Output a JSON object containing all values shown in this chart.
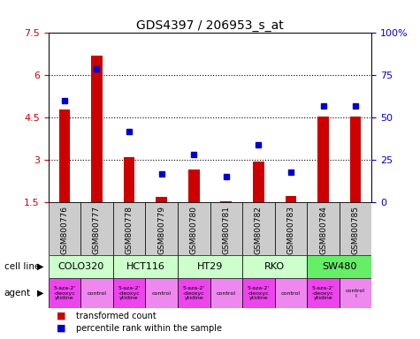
{
  "title": "GDS4397 / 206953_s_at",
  "samples": [
    "GSM800776",
    "GSM800777",
    "GSM800778",
    "GSM800779",
    "GSM800780",
    "GSM800781",
    "GSM800782",
    "GSM800783",
    "GSM800784",
    "GSM800785"
  ],
  "transformed_counts": [
    4.8,
    6.7,
    3.1,
    1.7,
    2.65,
    1.55,
    2.95,
    1.72,
    4.55,
    4.55
  ],
  "percentile_ranks": [
    60,
    79,
    42,
    17,
    28,
    15,
    34,
    18,
    57,
    57
  ],
  "ylim_left": [
    1.5,
    7.5
  ],
  "ylim_right": [
    0,
    100
  ],
  "yticks_left": [
    1.5,
    3.0,
    4.5,
    6.0,
    7.5
  ],
  "yticks_right": [
    0,
    25,
    50,
    75,
    100
  ],
  "ytick_labels_left": [
    "1.5",
    "3",
    "4.5",
    "6",
    "7.5"
  ],
  "ytick_labels_right": [
    "0",
    "25",
    "50",
    "75",
    "100%"
  ],
  "bar_color": "#cc0000",
  "dot_color": "#0000cc",
  "cell_lines": [
    {
      "name": "COLO320",
      "start": 0,
      "end": 2,
      "color": "#ccffcc"
    },
    {
      "name": "HCT116",
      "start": 2,
      "end": 4,
      "color": "#ccffcc"
    },
    {
      "name": "HT29",
      "start": 4,
      "end": 6,
      "color": "#ccffcc"
    },
    {
      "name": "RKO",
      "start": 6,
      "end": 8,
      "color": "#ccffcc"
    },
    {
      "name": "SW480",
      "start": 8,
      "end": 10,
      "color": "#66ee66"
    }
  ],
  "agents": [
    {
      "name": "5-aza-2'\n-deoxyc\nytidine",
      "color": "#ee44ee"
    },
    {
      "name": "control",
      "color": "#ee88ee"
    },
    {
      "name": "5-aza-2'\n-deoxyc\nytidine",
      "color": "#ee44ee"
    },
    {
      "name": "control",
      "color": "#ee88ee"
    },
    {
      "name": "5-aza-2'\n-deoxyc\nytidine",
      "color": "#ee44ee"
    },
    {
      "name": "control",
      "color": "#ee88ee"
    },
    {
      "name": "5-aza-2'\n-deoxyc\nytidine",
      "color": "#ee44ee"
    },
    {
      "name": "control",
      "color": "#ee88ee"
    },
    {
      "name": "5-aza-2'\n-deoxyc\nytidine",
      "color": "#ee44ee"
    },
    {
      "name": "control\nl",
      "color": "#ee88ee"
    }
  ],
  "legend_bar_label": "transformed count",
  "legend_dot_label": "percentile rank within the sample",
  "cell_line_label": "cell line",
  "agent_label": "agent",
  "sample_bg": "#cccccc",
  "bar_width": 0.35
}
